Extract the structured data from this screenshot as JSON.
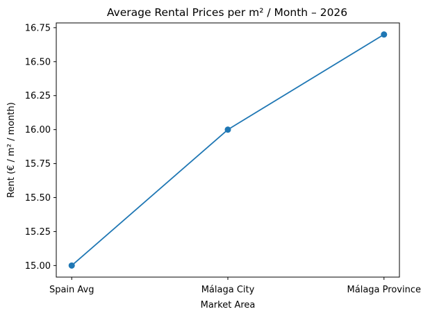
{
  "chart_data": {
    "type": "line",
    "title": "Average Rental Prices per m² / Month – 2026",
    "xlabel": "Market Area",
    "ylabel": "Rent (€ / m² / month)",
    "categories": [
      "Spain Avg",
      "Málaga City",
      "Málaga Province"
    ],
    "series": [
      {
        "values": [
          15.0,
          16.0,
          16.7
        ],
        "color": "#1f77b4",
        "marker": "circle"
      }
    ],
    "ylim": [
      14.915,
      16.785
    ],
    "yticks": [
      "15.00",
      "15.25",
      "15.50",
      "15.75",
      "16.00",
      "16.25",
      "16.50",
      "16.75"
    ],
    "grid": false,
    "legend": "none"
  }
}
